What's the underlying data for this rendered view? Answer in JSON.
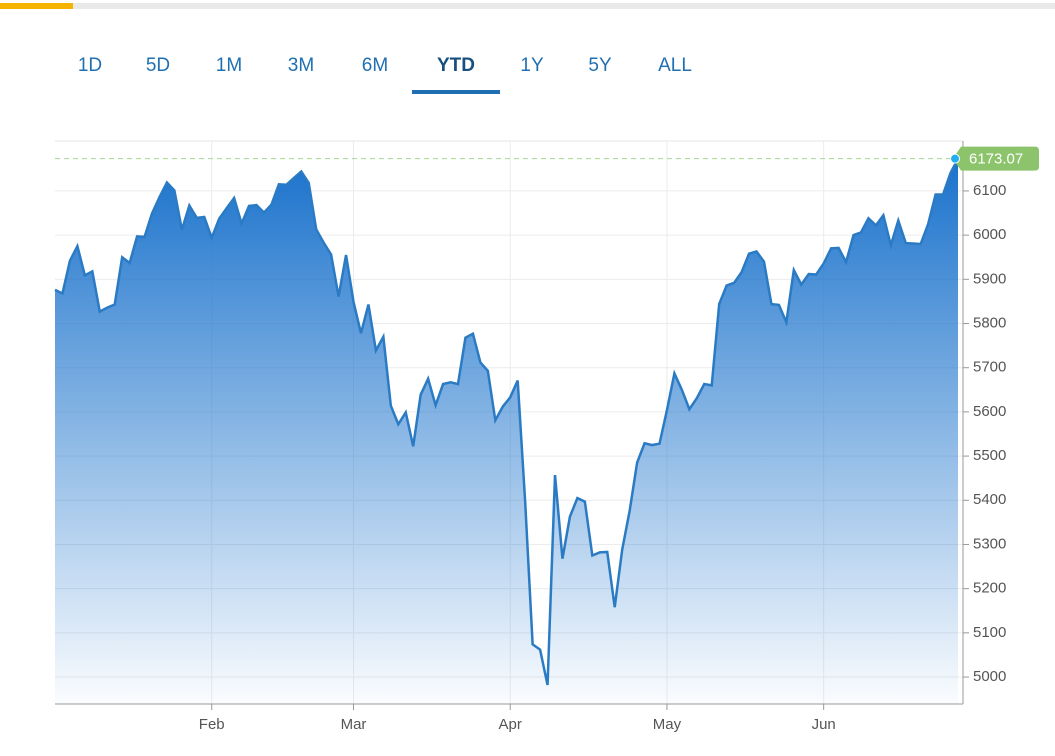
{
  "tabs": [
    "1D",
    "5D",
    "1M",
    "3M",
    "6M",
    "YTD",
    "1Y",
    "5Y",
    "ALL"
  ],
  "selected_tab": 5,
  "chart_data": {
    "type": "area",
    "categories": [
      null,
      null,
      null,
      null,
      null,
      null,
      null,
      null,
      null,
      null,
      null,
      null,
      null,
      null,
      null,
      null,
      null,
      null,
      null,
      null,
      null,
      "Feb",
      null,
      null,
      null,
      null,
      null,
      null,
      null,
      null,
      null,
      null,
      null,
      null,
      null,
      null,
      null,
      null,
      null,
      null,
      "Mar",
      null,
      null,
      null,
      null,
      null,
      null,
      null,
      null,
      null,
      null,
      null,
      null,
      null,
      null,
      null,
      null,
      null,
      null,
      null,
      null,
      "Apr",
      null,
      null,
      null,
      null,
      null,
      null,
      null,
      null,
      null,
      null,
      null,
      null,
      null,
      null,
      null,
      null,
      null,
      null,
      null,
      null,
      "May",
      null,
      null,
      null,
      null,
      null,
      null,
      null,
      null,
      null,
      null,
      null,
      null,
      null,
      null,
      null,
      null,
      null,
      null,
      null,
      null,
      "Jun",
      null,
      null,
      null,
      null,
      null,
      null,
      null,
      null,
      null,
      null,
      null,
      null,
      null,
      null,
      null,
      null,
      null,
      null
    ],
    "values": [
      5876,
      5868,
      5942,
      5975,
      5909,
      5918,
      5827,
      5836,
      5843,
      5950,
      5937,
      5997,
      5996,
      6049,
      6086,
      6119,
      6101,
      6012,
      6067,
      6039,
      6041,
      5994,
      6037,
      6061,
      6084,
      6026,
      6066,
      6068,
      6051,
      6069,
      6115,
      6114,
      6129,
      6144,
      6118,
      6013,
      5983,
      5956,
      5861,
      5955,
      5849,
      5778,
      5843,
      5739,
      5770,
      5614,
      5572,
      5599,
      5522,
      5639,
      5675,
      5615,
      5663,
      5667,
      5663,
      5768,
      5777,
      5712,
      5693,
      5581,
      5612,
      5633,
      5671,
      5397,
      5074,
      5062,
      4982,
      5457,
      5268,
      5363,
      5405,
      5397,
      5275,
      5282,
      5283,
      5158,
      5288,
      5376,
      5485,
      5529,
      5525,
      5528,
      5604,
      5687,
      5650,
      5606,
      5631,
      5663,
      5660,
      5844,
      5886,
      5892,
      5916,
      5958,
      5963,
      5940,
      5844,
      5842,
      5803,
      5921,
      5888,
      5912,
      5911,
      5936,
      5970,
      5971,
      5939,
      6000,
      6006,
      6038,
      6022,
      6045,
      5977,
      6033,
      5982,
      5981,
      5980,
      6025,
      6092,
      6092,
      6141,
      6173.07
    ],
    "color": "#2a7bc4",
    "ylim": [
      4939,
      6213
    ],
    "yticks": [
      5000,
      5100,
      5200,
      5300,
      5400,
      5500,
      5600,
      5700,
      5800,
      5900,
      6000,
      6100
    ],
    "grid": true,
    "last_value_color": "#8cc46c"
  }
}
